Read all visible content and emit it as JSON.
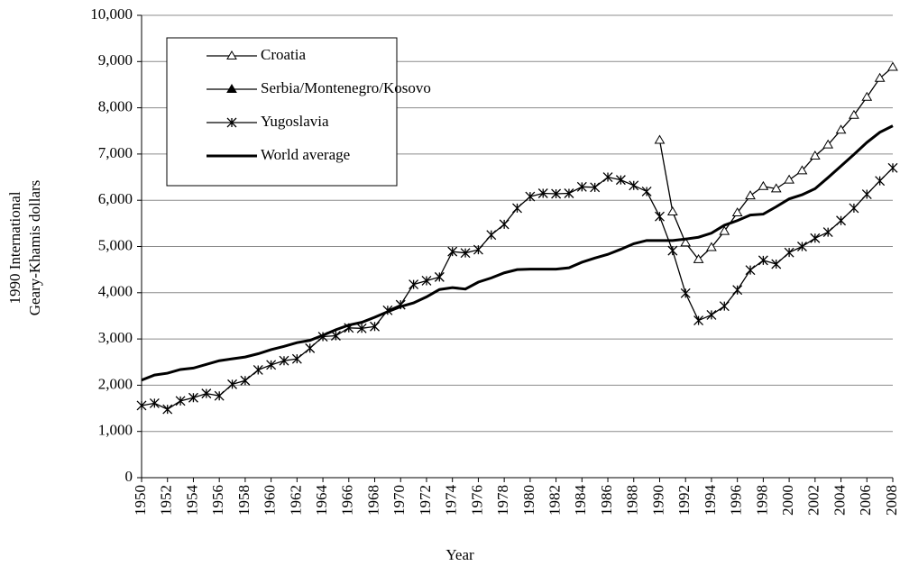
{
  "chart_data": {
    "type": "line",
    "ylabel": [
      "1990 International",
      "Geary-Khamis  dollars"
    ],
    "xlabel": "Year",
    "x": [
      1950,
      1951,
      1952,
      1953,
      1954,
      1955,
      1956,
      1957,
      1958,
      1959,
      1960,
      1961,
      1962,
      1963,
      1964,
      1965,
      1966,
      1967,
      1968,
      1969,
      1970,
      1971,
      1972,
      1973,
      1974,
      1975,
      1976,
      1977,
      1978,
      1979,
      1980,
      1981,
      1982,
      1983,
      1984,
      1985,
      1986,
      1987,
      1988,
      1989,
      1990,
      1991,
      1992,
      1993,
      1994,
      1995,
      1996,
      1997,
      1998,
      1999,
      2000,
      2001,
      2002,
      2003,
      2004,
      2005,
      2006,
      2007,
      2008
    ],
    "xlim": [
      1950,
      2008
    ],
    "xticks": [
      1950,
      1952,
      1954,
      1956,
      1958,
      1960,
      1962,
      1964,
      1966,
      1968,
      1970,
      1972,
      1974,
      1976,
      1978,
      1980,
      1982,
      1984,
      1986,
      1988,
      1990,
      1992,
      1994,
      1996,
      1998,
      2000,
      2002,
      2004,
      2006,
      2008
    ],
    "ylim": [
      0,
      10000
    ],
    "yticks": [
      0,
      {
        "value": 1000,
        "label": "1,000"
      },
      {
        "value": 2000,
        "label": "2,000"
      },
      {
        "value": 3000,
        "label": "3,000"
      },
      {
        "value": 4000,
        "label": "4,000"
      },
      {
        "value": 5000,
        "label": "5,000"
      },
      {
        "value": 6000,
        "label": "6,000"
      },
      {
        "value": 7000,
        "label": "7,000"
      },
      {
        "value": 8000,
        "label": "8,000"
      },
      {
        "value": 9000,
        "label": "9,000"
      },
      {
        "value": 10000,
        "label": "10,000"
      }
    ],
    "grid": true,
    "legend": "upper left",
    "series": [
      {
        "name": "Croatia",
        "color": "#000000",
        "marker": "triangle-open",
        "values": [
          null,
          null,
          null,
          null,
          null,
          null,
          null,
          null,
          null,
          null,
          null,
          null,
          null,
          null,
          null,
          null,
          null,
          null,
          null,
          null,
          null,
          null,
          null,
          null,
          null,
          null,
          null,
          null,
          null,
          null,
          null,
          null,
          null,
          null,
          null,
          null,
          null,
          null,
          null,
          null,
          7300,
          5750,
          5080,
          4720,
          4980,
          5330,
          5730,
          6100,
          6300,
          6250,
          6440,
          6640,
          6960,
          7200,
          7520,
          7840,
          8230,
          8640,
          8880
        ]
      },
      {
        "name": "Serbia/Montenegro/Kosovo",
        "color": "#000000",
        "marker": "triangle",
        "values": [
          null,
          null,
          null,
          null,
          null,
          null,
          null,
          null,
          null,
          null,
          null,
          null,
          null,
          null,
          null,
          null,
          null,
          null,
          null,
          null,
          null,
          null,
          null,
          null,
          null,
          null,
          null,
          null,
          null,
          null,
          null,
          null,
          null,
          null,
          null,
          null,
          null,
          null,
          null,
          null,
          null,
          null,
          null,
          null,
          null,
          null,
          null,
          null,
          null,
          null,
          null,
          null,
          null,
          null,
          null,
          null,
          null,
          null,
          null
        ]
      },
      {
        "name": "Yugoslavia",
        "color": "#000000",
        "marker": "star",
        "values": [
          1560,
          1610,
          1480,
          1660,
          1730,
          1820,
          1770,
          2020,
          2100,
          2330,
          2440,
          2530,
          2570,
          2800,
          3050,
          3070,
          3240,
          3230,
          3270,
          3620,
          3740,
          4180,
          4260,
          4340,
          4890,
          4860,
          4930,
          5250,
          5480,
          5830,
          6080,
          6150,
          6140,
          6150,
          6290,
          6280,
          6500,
          6440,
          6320,
          6190,
          5650,
          4910,
          3990,
          3400,
          3520,
          3710,
          4060,
          4490,
          4700,
          4620,
          4870,
          5000,
          5180,
          5310,
          5560,
          5830,
          6130,
          6420,
          6700
        ]
      },
      {
        "name": "World average",
        "color": "#000000",
        "marker": "none",
        "values": [
          2110,
          2220,
          2260,
          2340,
          2370,
          2450,
          2530,
          2570,
          2610,
          2680,
          2770,
          2840,
          2920,
          2970,
          3080,
          3200,
          3300,
          3360,
          3470,
          3590,
          3700,
          3780,
          3910,
          4070,
          4110,
          4080,
          4230,
          4320,
          4430,
          4500,
          4510,
          4510,
          4510,
          4540,
          4660,
          4750,
          4830,
          4940,
          5060,
          5130,
          5130,
          5130,
          5160,
          5200,
          5290,
          5460,
          5560,
          5680,
          5700,
          5860,
          6030,
          6120,
          6250,
          6490,
          6740,
          6990,
          7250,
          7470,
          7610
        ]
      }
    ]
  }
}
